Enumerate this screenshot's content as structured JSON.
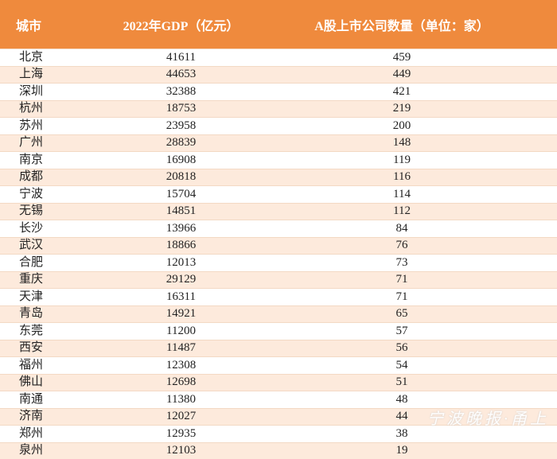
{
  "table": {
    "header": [
      "城市",
      "2022年GDP（亿元）",
      "A股上市公司数量（单位：家）"
    ],
    "rows": [
      [
        "北京",
        41611,
        459
      ],
      [
        "上海",
        44653,
        449
      ],
      [
        "深圳",
        32388,
        421
      ],
      [
        "杭州",
        18753,
        219
      ],
      [
        "苏州",
        23958,
        200
      ],
      [
        "广州",
        28839,
        148
      ],
      [
        "南京",
        16908,
        119
      ],
      [
        "成都",
        20818,
        116
      ],
      [
        "宁波",
        15704,
        114
      ],
      [
        "无锡",
        14851,
        112
      ],
      [
        "长沙",
        13966,
        84
      ],
      [
        "武汉",
        18866,
        76
      ],
      [
        "合肥",
        12013,
        73
      ],
      [
        "重庆",
        29129,
        71
      ],
      [
        "天津",
        16311,
        71
      ],
      [
        "青岛",
        14921,
        65
      ],
      [
        "东莞",
        11200,
        57
      ],
      [
        "西安",
        11487,
        56
      ],
      [
        "福州",
        12308,
        54
      ],
      [
        "佛山",
        12698,
        51
      ],
      [
        "南通",
        11380,
        48
      ],
      [
        "济南",
        12027,
        44
      ],
      [
        "郑州",
        12935,
        38
      ],
      [
        "泉州",
        12103,
        19
      ]
    ]
  },
  "watermark": "宁波晚报·甬上"
}
